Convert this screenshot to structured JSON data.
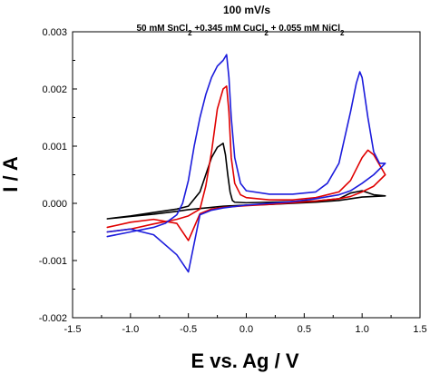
{
  "chart_data": {
    "type": "line",
    "title": "100 mV/s",
    "subtitle": {
      "parts": [
        {
          "text": "50 mM SnCl",
          "sub": false
        },
        {
          "text": "2",
          "sub": true
        },
        {
          "text": " +0.345 mM CuCl",
          "sub": false
        },
        {
          "text": "2",
          "sub": true
        },
        {
          "text": " + 0.055 mM NiCl",
          "sub": false
        },
        {
          "text": "2",
          "sub": true
        }
      ]
    },
    "xlabel": "E vs. Ag / V",
    "ylabel": "I / A",
    "xlim": [
      -1.5,
      1.5
    ],
    "ylim": [
      -0.002,
      0.003
    ],
    "xticks": [
      -1.5,
      -1.0,
      -0.5,
      0.0,
      0.5,
      1.0,
      1.5
    ],
    "xtick_labels": [
      "-1.5",
      "-1.0",
      "-0.5",
      "0.0",
      "0.5",
      "1.0",
      "1.5"
    ],
    "yticks": [
      -0.002,
      -0.001,
      0.0,
      0.001,
      0.002,
      0.003
    ],
    "ytick_labels": [
      "-0.002",
      "-0.001",
      "0.000",
      "0.001",
      "0.002",
      "0.003"
    ],
    "grid": false,
    "legend": "none",
    "series": [
      {
        "color": "#000000",
        "x": [
          -1.2,
          -1.0,
          -0.8,
          -0.6,
          -0.5,
          -0.4,
          -0.35,
          -0.3,
          -0.25,
          -0.2,
          -0.18,
          -0.16,
          -0.14,
          -0.12,
          -0.1,
          0.0,
          0.2,
          0.4,
          0.6,
          0.8,
          0.9,
          1.0,
          1.1,
          1.2,
          1.1,
          1.0,
          0.9,
          0.8,
          0.6,
          0.4,
          0.2,
          0.0,
          -0.2,
          -0.3,
          -0.35,
          -0.4,
          -0.5,
          -0.6,
          -0.8,
          -1.0,
          -1.2
        ],
        "y": [
          -0.00027,
          -0.00022,
          -0.00016,
          -0.0001,
          -5e-05,
          0.0002,
          0.0005,
          0.0008,
          0.00098,
          0.00105,
          0.00085,
          0.0005,
          0.0002,
          5e-05,
          2e-05,
          1e-05,
          2e-05,
          3e-05,
          4e-05,
          8e-05,
          0.00018,
          0.00022,
          0.00015,
          0.00013,
          0.00012,
          0.00011,
          8e-05,
          5e-05,
          2e-05,
          0.0,
          -2e-05,
          -3e-05,
          -5e-05,
          -7e-05,
          -8e-05,
          -9e-05,
          -0.00011,
          -0.00014,
          -0.00019,
          -0.00023,
          -0.00027
        ]
      },
      {
        "color": "#e00000",
        "x": [
          -1.2,
          -1.0,
          -0.8,
          -0.6,
          -0.5,
          -0.4,
          -0.35,
          -0.3,
          -0.25,
          -0.2,
          -0.17,
          -0.15,
          -0.13,
          -0.1,
          -0.05,
          0.0,
          0.2,
          0.4,
          0.6,
          0.8,
          0.9,
          0.95,
          1.0,
          1.05,
          1.1,
          1.2,
          1.1,
          1.0,
          0.9,
          0.8,
          0.6,
          0.4,
          0.2,
          0.0,
          -0.2,
          -0.3,
          -0.4,
          -0.5,
          -0.6,
          -0.8,
          -1.0,
          -1.2
        ],
        "y": [
          -0.0005,
          -0.00045,
          -0.00036,
          -0.00028,
          -0.00022,
          -0.0001,
          0.0003,
          0.0009,
          0.00165,
          0.002,
          0.00205,
          0.0016,
          0.0008,
          0.00035,
          0.00015,
          0.0001,
          6e-05,
          6e-05,
          0.0001,
          0.0002,
          0.0004,
          0.0006,
          0.0008,
          0.00093,
          0.00085,
          0.0005,
          0.0003,
          0.0002,
          0.00012,
          8e-05,
          4e-05,
          1e-05,
          -2e-05,
          -4e-05,
          -7e-05,
          -0.0001,
          -0.00018,
          -0.00065,
          -0.00035,
          -0.00028,
          -0.00033,
          -0.00042
        ]
      },
      {
        "color": "#1c1cdc",
        "x": [
          -1.2,
          -1.0,
          -0.8,
          -0.7,
          -0.6,
          -0.55,
          -0.5,
          -0.45,
          -0.4,
          -0.35,
          -0.3,
          -0.25,
          -0.2,
          -0.17,
          -0.15,
          -0.13,
          -0.1,
          -0.05,
          0.0,
          0.2,
          0.4,
          0.6,
          0.7,
          0.8,
          0.9,
          0.95,
          0.98,
          1.0,
          1.05,
          1.1,
          1.15,
          1.2,
          1.1,
          1.0,
          0.9,
          0.8,
          0.6,
          0.4,
          0.2,
          0.0,
          -0.2,
          -0.3,
          -0.4,
          -0.5,
          -0.6,
          -0.8,
          -1.0,
          -1.2
        ],
        "y": [
          -0.00058,
          -0.0005,
          -0.00042,
          -0.00035,
          -0.0002,
          0.0,
          0.0004,
          0.001,
          0.0015,
          0.0019,
          0.0022,
          0.0024,
          0.0025,
          0.0026,
          0.0022,
          0.0015,
          0.0008,
          0.00035,
          0.00022,
          0.00016,
          0.00016,
          0.0002,
          0.00035,
          0.0007,
          0.0016,
          0.0021,
          0.0023,
          0.0022,
          0.0015,
          0.0009,
          0.0007,
          0.0007,
          0.0005,
          0.00035,
          0.00022,
          0.00015,
          8e-05,
          3e-05,
          0.0,
          -3e-05,
          -8e-05,
          -0.00012,
          -0.0002,
          -0.0012,
          -0.0009,
          -0.00055,
          -0.00045,
          -0.0005
        ]
      }
    ]
  }
}
